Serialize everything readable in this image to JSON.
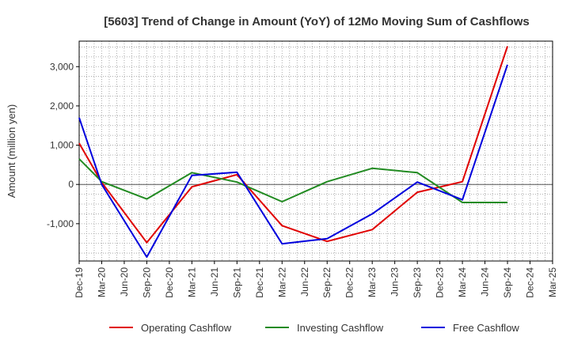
{
  "chart_data": {
    "type": "line",
    "title": "[5603]  Trend of Change in Amount (YoY) of 12Mo Moving Sum of Cashflows",
    "xlabel": "",
    "ylabel": "Amount (million yen)",
    "ylim": [
      -1950,
      3650
    ],
    "yticks": [
      -1000,
      0,
      1000,
      2000,
      3000
    ],
    "ytick_labels": [
      "-1,000",
      "0",
      "1,000",
      "2,000",
      "3,000"
    ],
    "x_categories": [
      "Dec-19",
      "Mar-20",
      "Jun-20",
      "Sep-20",
      "Dec-20",
      "Mar-21",
      "Jun-21",
      "Sep-21",
      "Dec-21",
      "Mar-22",
      "Jun-22",
      "Sep-22",
      "Dec-22",
      "Mar-23",
      "Jun-23",
      "Sep-23",
      "Dec-23",
      "Mar-24",
      "Jun-24",
      "Sep-24",
      "Dec-24",
      "Mar-25"
    ],
    "grid": true,
    "legend_position": "bottom",
    "series": [
      {
        "name": "Operating Cashflow",
        "color": "#e00000",
        "points": [
          {
            "x": "Dec-19",
            "y": 1050
          },
          {
            "x": "Mar-20",
            "y": 50
          },
          {
            "x": "Sep-20",
            "y": -1480
          },
          {
            "x": "Mar-21",
            "y": -60
          },
          {
            "x": "Sep-21",
            "y": 250
          },
          {
            "x": "Mar-22",
            "y": -1050
          },
          {
            "x": "Sep-22",
            "y": -1450
          },
          {
            "x": "Mar-23",
            "y": -1150
          },
          {
            "x": "Sep-23",
            "y": -200
          },
          {
            "x": "Mar-24",
            "y": 70
          },
          {
            "x": "Sep-24",
            "y": 3520
          }
        ]
      },
      {
        "name": "Investing Cashflow",
        "color": "#228b22",
        "points": [
          {
            "x": "Dec-19",
            "y": 650
          },
          {
            "x": "Mar-20",
            "y": 70
          },
          {
            "x": "Sep-20",
            "y": -370
          },
          {
            "x": "Mar-21",
            "y": 300
          },
          {
            "x": "Sep-21",
            "y": 60
          },
          {
            "x": "Mar-22",
            "y": -440
          },
          {
            "x": "Sep-22",
            "y": 70
          },
          {
            "x": "Mar-23",
            "y": 410
          },
          {
            "x": "Sep-23",
            "y": 300
          },
          {
            "x": "Mar-24",
            "y": -460
          },
          {
            "x": "Sep-24",
            "y": -460
          }
        ]
      },
      {
        "name": "Free Cashflow",
        "color": "#0000dd",
        "points": [
          {
            "x": "Dec-19",
            "y": 1700
          },
          {
            "x": "Mar-20",
            "y": 0
          },
          {
            "x": "Sep-20",
            "y": -1850
          },
          {
            "x": "Mar-21",
            "y": 230
          },
          {
            "x": "Sep-21",
            "y": 310
          },
          {
            "x": "Mar-22",
            "y": -1510
          },
          {
            "x": "Sep-22",
            "y": -1380
          },
          {
            "x": "Mar-23",
            "y": -750
          },
          {
            "x": "Sep-23",
            "y": 60
          },
          {
            "x": "Mar-24",
            "y": -390
          },
          {
            "x": "Sep-24",
            "y": 3050
          }
        ]
      }
    ]
  }
}
